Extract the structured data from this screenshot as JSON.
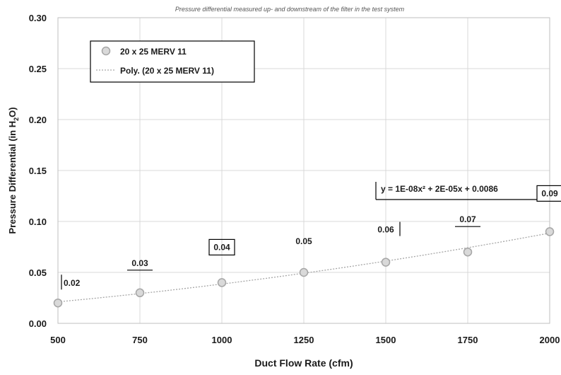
{
  "chart_data": {
    "type": "scatter",
    "subtitle": "Pressure differential measured up- and downstream of the filter in the test system",
    "xlabel": "Duct Flow Rate (cfm)",
    "ylabel_prefix": "Pressure Differential (in H",
    "ylabel_sub": "2",
    "ylabel_suffix": "O)",
    "xlim": [
      500,
      2000
    ],
    "ylim": [
      0,
      0.3
    ],
    "x_ticks": [
      "500",
      "750",
      "1000",
      "1250",
      "1500",
      "1750",
      "2000"
    ],
    "y_ticks": [
      "0.00",
      "0.05",
      "0.10",
      "0.15",
      "0.20",
      "0.25",
      "0.30"
    ],
    "grid": true,
    "legend_position": "top-left",
    "series": [
      {
        "name": "20 x 25 MERV 11",
        "x": [
          500,
          750,
          1000,
          1250,
          1500,
          1750,
          2000
        ],
        "y": [
          0.02,
          0.03,
          0.04,
          0.05,
          0.06,
          0.07,
          0.09
        ],
        "labels": [
          "0.02",
          "0.03",
          "0.04",
          "0.05",
          "0.06",
          "0.07",
          "0.09"
        ],
        "marker_fill": "#d9d9d9",
        "marker_stroke": "#a6a6a6"
      }
    ],
    "trendline": {
      "name": "Poly. (20 x 25 MERV 11)",
      "type": "polynomial",
      "order": 2,
      "coefficients": [
        1e-08,
        2e-05,
        0.0086
      ],
      "equation": "y = 1E-08x² + 2E-05x + 0.0086",
      "color": "#a6a6a6"
    }
  }
}
